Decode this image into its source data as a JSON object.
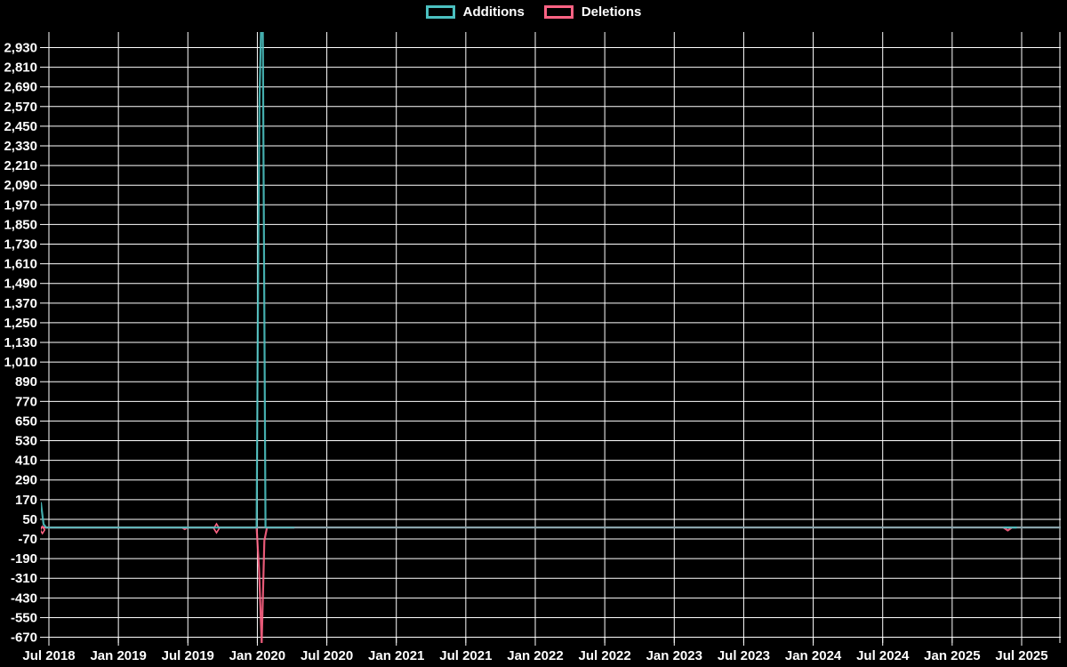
{
  "chart_data": {
    "type": "line",
    "title": "",
    "background_color": "#000000",
    "grid": true,
    "grid_color": "#ffffff",
    "legend_position": "top-center",
    "legend_items": [
      {
        "label": "Additions",
        "color": "#4bc0c0"
      },
      {
        "label": "Deletions",
        "color": "#ff6384"
      }
    ],
    "x_axis_type": "time-weekly",
    "xlim": [
      "2018-06-10",
      "2025-10-12"
    ],
    "x_tick_labels": [
      "Jul 2018",
      "Jan 2019",
      "Jul 2019",
      "Jan 2020",
      "Jul 2020",
      "Jan 2021",
      "Jul 2021",
      "Jan 2022",
      "Jul 2022",
      "Jan 2023",
      "Jul 2023",
      "Jan 2024",
      "Jul 2024",
      "Jan 2025",
      "Jul 2025"
    ],
    "ylim": [
      -705,
      3025
    ],
    "y_ticks": [
      2930,
      2810,
      2690,
      2570,
      2450,
      2330,
      2210,
      2090,
      1970,
      1850,
      1730,
      1610,
      1490,
      1370,
      1250,
      1130,
      1010,
      890,
      770,
      650,
      530,
      410,
      290,
      170,
      50,
      -70,
      -190,
      -310,
      -430,
      -550,
      -670
    ],
    "y_tick_labels": [
      "2,930",
      "2,810",
      "2,690",
      "2,570",
      "2,450",
      "2,330",
      "2,210",
      "2,090",
      "1,970",
      "1,850",
      "1,730",
      "1,610",
      "1,490",
      "1,370",
      "1,250",
      "1,130",
      "1,010",
      "890",
      "770",
      "650",
      "530",
      "410",
      "290",
      "170",
      "50",
      "-70",
      "-190",
      "-310",
      "-430",
      "-550",
      "-670"
    ],
    "zero_baseline_color": "#8aa3ab",
    "clipping_note": "Additions peak (~Jan 2020) and Deletions trough extend past the visible axis range and are clipped at the plot edges",
    "series": [
      {
        "name": "Additions",
        "color": "#4bc0c0",
        "segments": [
          [
            [
              "2018-06-10",
              150
            ],
            [
              "2018-06-17",
              20
            ],
            [
              "2018-06-24",
              0
            ],
            [
              "2019-12-29",
              0
            ],
            [
              "2020-01-03",
              1680
            ],
            [
              "2020-01-06",
              2610
            ],
            [
              "2020-01-10",
              3025
            ],
            [
              "2020-01-15",
              3025
            ],
            [
              "2020-01-22",
              0
            ],
            [
              "2020-04-05",
              0
            ]
          ],
          [
            [
              "2025-05-14",
              0
            ],
            [
              "2025-06-16",
              0
            ]
          ]
        ],
        "markers": []
      },
      {
        "name": "Deletions",
        "color": "#ff6384",
        "segments": [
          [
            [
              "2018-06-10",
              -25
            ],
            [
              "2018-06-17",
              0
            ],
            [
              "2019-06-16",
              0
            ],
            [
              "2019-06-23",
              -10
            ],
            [
              "2019-06-30",
              0
            ],
            [
              "2019-12-29",
              0
            ],
            [
              "2020-01-05",
              -250
            ],
            [
              "2020-01-12",
              -710
            ],
            [
              "2020-01-19",
              -80
            ],
            [
              "2020-01-26",
              0
            ],
            [
              "2020-04-05",
              0
            ]
          ],
          [
            [
              "2025-05-14",
              0
            ],
            [
              "2025-05-25",
              -18
            ],
            [
              "2025-06-05",
              0
            ]
          ]
        ],
        "markers": [
          [
            "2018-06-14",
            -15,
            4
          ],
          [
            "2019-09-15",
            -5,
            5
          ]
        ]
      }
    ]
  }
}
